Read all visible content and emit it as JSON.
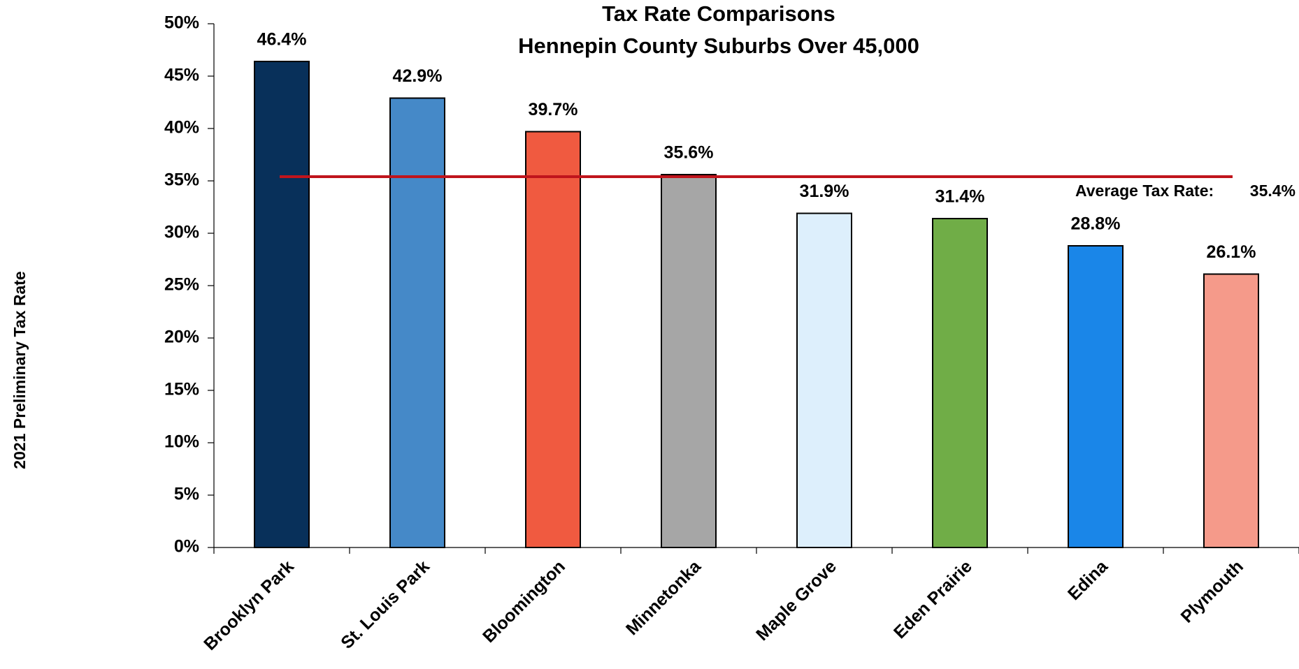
{
  "chart_data": {
    "type": "bar",
    "title": [
      "Tax Rate Comparisons",
      "Hennepin County Suburbs Over 45,000"
    ],
    "y_label": "2021 Preliminary Tax Rate",
    "categories": [
      "Brooklyn Park",
      "St. Louis Park",
      "Bloomington",
      "Minnetonka",
      "Maple Grove",
      "Eden Prairie",
      "Edina",
      "Plymouth"
    ],
    "values": [
      46.4,
      42.9,
      39.7,
      35.6,
      31.9,
      31.4,
      28.8,
      26.1
    ],
    "value_labels": [
      "46.4%",
      "42.9%",
      "39.7%",
      "35.6%",
      "31.9%",
      "31.4%",
      "28.8%",
      "26.1%"
    ],
    "colors": [
      "#08305a",
      "#4589c8",
      "#f05a40",
      "#a6a6a6",
      "#ddeffc",
      "#70ad47",
      "#1a86e8",
      "#f59a8a"
    ],
    "average": {
      "label": "Average Tax Rate:",
      "value": 35.4,
      "value_label": "35.4%",
      "color": "#c0141c"
    },
    "ylim": [
      0,
      50
    ],
    "yticks": [
      {
        "value": 0,
        "label": "0%"
      },
      {
        "value": 5,
        "label": "5%"
      },
      {
        "value": 10,
        "label": "10%"
      },
      {
        "value": 15,
        "label": "15%"
      },
      {
        "value": 20,
        "label": "20%"
      },
      {
        "value": 25,
        "label": "25%"
      },
      {
        "value": 30,
        "label": "30%"
      },
      {
        "value": 35,
        "label": "35%"
      },
      {
        "value": 40,
        "label": "40%"
      },
      {
        "value": 45,
        "label": "45%"
      },
      {
        "value": 50,
        "label": "50%"
      }
    ],
    "grid": false
  }
}
